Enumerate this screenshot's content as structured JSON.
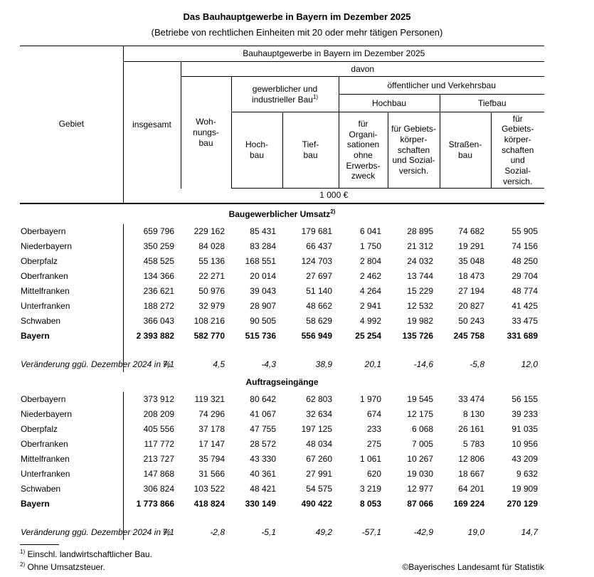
{
  "title": "Das Bauhauptgewerbe in Bayern im Dezember 2025",
  "subtitle": "(Betriebe von rechtlichen Einheiten mit 20 oder mehr tätigen Personen)",
  "table": {
    "header": {
      "gebiet": "Gebiet",
      "top": "Bauhauptgewerbe in Bayern im Dezember 2025",
      "davon": "davon",
      "gewerblich": "gewerblicher und\nindustrieller Bau",
      "gewerblich_sup": "1)",
      "oeffentlich": "öffentlicher und Verkehrsbau",
      "hochbau_group": "Hochbau",
      "tiefbau_group": "Tiefbau",
      "col_insgesamt": "insgesamt",
      "col_wohnungsbau": "Woh-\nnungs-\nbau",
      "col_hochbau": "Hoch-\nbau",
      "col_tiefbau": "Tief-\nbau",
      "col_org": "für\nOrgani-\nsationen\nohne\nErwerbs-\nzweck",
      "col_gebiets_hoch": "für Gebiets-\nkörper-\nschaften\nund Sozial-\nversich.",
      "col_strassenbau": "Straßen-\nbau",
      "col_gebiets_tief": "für\nGebiets-\nkörper-\nschaften\nund\nSozial-\nversich.",
      "unit": "1 000 €"
    },
    "sections": [
      {
        "title": "Baugewerblicher Umsatz",
        "title_sup": "2)",
        "rows": [
          {
            "region": "Oberbayern",
            "bold": false,
            "values": [
              "659 796",
              "229 162",
              "85 431",
              "179 681",
              "6 041",
              "28 895",
              "74 682",
              "55 905"
            ]
          },
          {
            "region": "Niederbayern",
            "bold": false,
            "values": [
              "350 259",
              "84 028",
              "83 284",
              "66 437",
              "1 750",
              "21 312",
              "19 291",
              "74 156"
            ]
          },
          {
            "region": "Oberpfalz",
            "bold": false,
            "values": [
              "458 525",
              "55 136",
              "168 551",
              "124 703",
              "2 804",
              "24 032",
              "35 048",
              "48 250"
            ]
          },
          {
            "region": "Oberfranken",
            "bold": false,
            "values": [
              "134 366",
              "22 271",
              "20 014",
              "27 697",
              "2 462",
              "13 744",
              "18 473",
              "29 704"
            ]
          },
          {
            "region": "Mittelfranken",
            "bold": false,
            "values": [
              "236 621",
              "50 976",
              "39 043",
              "51 140",
              "4 264",
              "15 229",
              "27 194",
              "48 774"
            ]
          },
          {
            "region": "Unterfranken",
            "bold": false,
            "values": [
              "188 272",
              "32 979",
              "28 907",
              "48 662",
              "2 941",
              "12 532",
              "20 827",
              "41 425"
            ]
          },
          {
            "region": "Schwaben",
            "bold": false,
            "values": [
              "366 043",
              "108 216",
              "90 505",
              "58 629",
              "4 992",
              "19 982",
              "50 243",
              "33 475"
            ]
          },
          {
            "region": "Bayern",
            "bold": true,
            "values": [
              "2 393 882",
              "582 770",
              "515 736",
              "556 949",
              "25 254",
              "135 726",
              "245 758",
              "331 689"
            ]
          }
        ],
        "change": {
          "label": "Veränderung ggü.\nDezember 2024 in %",
          "values": [
            "7,1",
            "4,5",
            "-4,3",
            "38,9",
            "20,1",
            "-14,6",
            "-5,8",
            "12,0"
          ]
        }
      },
      {
        "title": "Auftragseingänge",
        "title_sup": "",
        "rows": [
          {
            "region": "Oberbayern",
            "bold": false,
            "values": [
              "373 912",
              "119 321",
              "80 642",
              "62 803",
              "1 970",
              "19 545",
              "33 474",
              "56 155"
            ]
          },
          {
            "region": "Niederbayern",
            "bold": false,
            "values": [
              "208 209",
              "74 296",
              "41 067",
              "32 634",
              "674",
              "12 175",
              "8 130",
              "39 233"
            ]
          },
          {
            "region": "Oberpfalz",
            "bold": false,
            "values": [
              "405 556",
              "37 178",
              "47 755",
              "197 125",
              "233",
              "6 068",
              "26 161",
              "91 035"
            ]
          },
          {
            "region": "Oberfranken",
            "bold": false,
            "values": [
              "117 772",
              "17 147",
              "28 572",
              "48 034",
              "275",
              "7 005",
              "5 783",
              "10 956"
            ]
          },
          {
            "region": "Mittelfranken",
            "bold": false,
            "values": [
              "213 727",
              "35 794",
              "43 330",
              "67 260",
              "1 061",
              "10 267",
              "12 806",
              "43 209"
            ]
          },
          {
            "region": "Unterfranken",
            "bold": false,
            "values": [
              "147 868",
              "31 566",
              "40 361",
              "27 991",
              "620",
              "19 030",
              "18 667",
              "9 632"
            ]
          },
          {
            "region": "Schwaben",
            "bold": false,
            "values": [
              "306 824",
              "103 522",
              "48 421",
              "54 575",
              "3 219",
              "12 977",
              "64 201",
              "19 909"
            ]
          },
          {
            "region": "Bayern",
            "bold": true,
            "values": [
              "1 773 866",
              "418 824",
              "330 149",
              "490 422",
              "8 053",
              "87 066",
              "169 224",
              "270 129"
            ]
          }
        ],
        "change": {
          "label": "Veränderung ggü.\nDezember 2024 in %",
          "values": [
            "7,1",
            "-2,8",
            "-5,1",
            "49,2",
            "-57,1",
            "-42,9",
            "19,0",
            "14,7"
          ]
        }
      }
    ]
  },
  "footnotes": [
    {
      "marker": "1)",
      "text": "Einschl. landwirtschaftlicher Bau."
    },
    {
      "marker": "2)",
      "text": "Ohne Umsatzsteuer."
    }
  ],
  "copyright": "©Bayerisches Landesamt für Statistik"
}
